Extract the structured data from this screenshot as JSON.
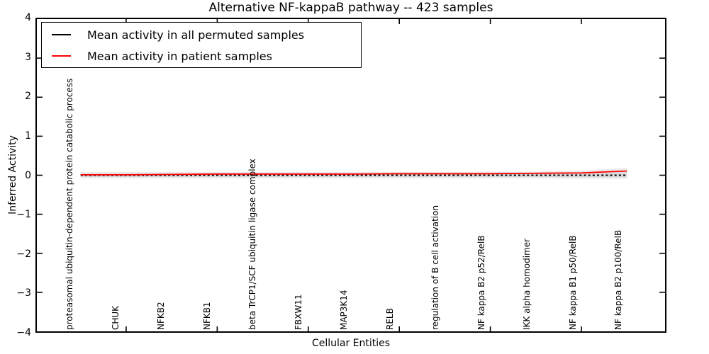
{
  "title": "Alternative NF-kappaB pathway -- 423 samples",
  "legend": {
    "items": [
      {
        "label": "Mean activity in all permuted samples",
        "color": "#000000"
      },
      {
        "label": "Mean activity in patient samples",
        "color": "#ff0000"
      }
    ]
  },
  "axes": {
    "x_label": "Cellular Entities",
    "y_label": "Inferred Activity",
    "y_ticks": [
      {
        "label": "4",
        "value": 4
      },
      {
        "label": "3",
        "value": 3
      },
      {
        "label": "2",
        "value": 2
      },
      {
        "label": "1",
        "value": 1
      },
      {
        "label": "0",
        "value": 0
      },
      {
        "label": "−1",
        "value": -1
      },
      {
        "label": "−2",
        "value": -2
      },
      {
        "label": "−3",
        "value": -3
      },
      {
        "label": "−4",
        "value": -4
      }
    ]
  },
  "chart_data": {
    "type": "line",
    "title": "Alternative NF-kappaB pathway -- 423 samples",
    "xlabel": "Cellular Entities",
    "ylabel": "Inferred Activity",
    "ylim": [
      -4,
      4
    ],
    "grid": false,
    "legend_position": "upper left",
    "categories": [
      "proteasomal ubiquitin-dependent protein catabolic process",
      "CHUK",
      "NFKB2",
      "NFKB1",
      "beta TrCP1/SCF ubiquitin ligase complex",
      "FBXW11",
      "MAP3K14",
      "RELB",
      "regulation of B cell activation",
      "NF kappa B2 p52/RelB",
      "IKK alpha homodimer",
      "NF kappa B1 p50/RelB",
      "NF kappa B2 p100/RelB"
    ],
    "series": [
      {
        "name": "Mean activity in all permuted samples",
        "color": "#000000",
        "style": "dotted",
        "values": [
          0,
          0,
          0,
          0,
          0,
          0,
          0,
          0,
          0,
          0,
          0,
          0,
          0
        ]
      },
      {
        "name": "Mean activity in patient samples",
        "color": "#ff0000",
        "style": "solid",
        "values": [
          0.01,
          0.01,
          0.02,
          0.03,
          0.03,
          0.03,
          0.03,
          0.04,
          0.04,
          0.04,
          0.05,
          0.06,
          0.11
        ]
      }
    ],
    "band": {
      "description": "shaded std region around permuted mean",
      "outer_color": "#ebebeb",
      "inner_color": "#d9d9d9",
      "upper": [
        0.08,
        0.08,
        0.08,
        0.08,
        0.08,
        0.08,
        0.08,
        0.08,
        0.08,
        0.09,
        0.09,
        0.12,
        0.19
      ],
      "lower": [
        -0.08,
        -0.08,
        -0.08,
        -0.08,
        -0.08,
        -0.08,
        -0.08,
        -0.08,
        -0.08,
        -0.08,
        -0.08,
        -0.09,
        -0.09
      ]
    },
    "x_major_tick_indices": [
      1,
      3,
      5,
      7,
      9,
      11
    ]
  }
}
